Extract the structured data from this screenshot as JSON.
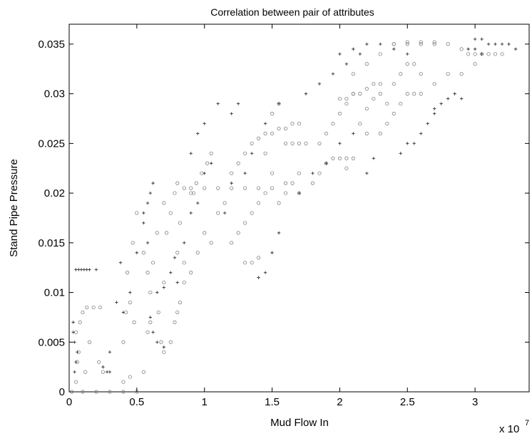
{
  "chart_data": {
    "type": "scatter",
    "title": "Correlation between pair of attributes",
    "xlabel": "Mud Flow In",
    "ylabel": "Stand Pipe Pressure",
    "x_multiplier_label": "x 10",
    "x_multiplier_exponent": "7",
    "xlim": [
      0,
      3.4
    ],
    "ylim": [
      0,
      0.037
    ],
    "x_ticks": [
      0,
      0.5,
      1,
      1.5,
      2,
      2.5,
      3
    ],
    "x_tick_labels": [
      "0",
      "0.5",
      "1",
      "1.5",
      "2",
      "2.5",
      "3"
    ],
    "y_ticks": [
      0,
      0.005,
      0.01,
      0.015,
      0.02,
      0.025,
      0.03,
      0.035
    ],
    "y_tick_labels": [
      "0",
      "0.005",
      "0.01",
      "0.015",
      "0.02",
      "0.025",
      "0.03",
      "0.035"
    ],
    "grid": false,
    "legend": "none",
    "series": [
      {
        "marker": "circle",
        "color": "#808080",
        "points": [
          [
            0.02,
            0.0
          ],
          [
            0.1,
            0.0
          ],
          [
            0.2,
            0.0
          ],
          [
            0.3,
            0.0
          ],
          [
            0.4,
            0.0
          ],
          [
            0.5,
            0.0
          ],
          [
            0.05,
            0.001
          ],
          [
            0.07,
            0.004
          ],
          [
            0.08,
            0.007
          ],
          [
            0.1,
            0.008
          ],
          [
            0.13,
            0.0085
          ],
          [
            0.18,
            0.0085
          ],
          [
            0.23,
            0.0085
          ],
          [
            0.05,
            0.006
          ],
          [
            0.06,
            0.003
          ],
          [
            0.15,
            0.005
          ],
          [
            0.12,
            0.002
          ],
          [
            0.22,
            0.003
          ],
          [
            0.25,
            0.002
          ],
          [
            0.4,
            0.005
          ],
          [
            0.42,
            0.008
          ],
          [
            0.45,
            0.009
          ],
          [
            0.43,
            0.012
          ],
          [
            0.47,
            0.015
          ],
          [
            0.5,
            0.018
          ],
          [
            0.48,
            0.007
          ],
          [
            0.4,
            0.001
          ],
          [
            0.45,
            0.0015
          ],
          [
            0.55,
            0.002
          ],
          [
            0.58,
            0.006
          ],
          [
            0.6,
            0.01
          ],
          [
            0.62,
            0.013
          ],
          [
            0.65,
            0.016
          ],
          [
            0.55,
            0.014
          ],
          [
            0.58,
            0.012
          ],
          [
            0.6,
            0.007
          ],
          [
            0.66,
            0.008
          ],
          [
            0.7,
            0.011
          ],
          [
            0.72,
            0.016
          ],
          [
            0.7,
            0.019
          ],
          [
            0.75,
            0.018
          ],
          [
            0.78,
            0.02
          ],
          [
            0.8,
            0.021
          ],
          [
            0.82,
            0.017
          ],
          [
            0.8,
            0.014
          ],
          [
            0.85,
            0.013
          ],
          [
            0.75,
            0.005
          ],
          [
            0.78,
            0.007
          ],
          [
            0.8,
            0.008
          ],
          [
            0.82,
            0.009
          ],
          [
            0.7,
            0.004
          ],
          [
            0.68,
            0.005
          ],
          [
            0.85,
            0.011
          ],
          [
            0.9,
            0.012
          ],
          [
            0.95,
            0.014
          ],
          [
            1.0,
            0.016
          ],
          [
            1.05,
            0.015
          ],
          [
            0.9,
            0.02
          ],
          [
            0.92,
            0.02
          ],
          [
            0.94,
            0.021
          ],
          [
            0.98,
            0.022
          ],
          [
            1.02,
            0.023
          ],
          [
            1.05,
            0.024
          ],
          [
            0.85,
            0.0205
          ],
          [
            0.9,
            0.0205
          ],
          [
            1.0,
            0.0205
          ],
          [
            1.1,
            0.0205
          ],
          [
            1.2,
            0.0205
          ],
          [
            1.3,
            0.0205
          ],
          [
            1.4,
            0.0205
          ],
          [
            1.5,
            0.0205
          ],
          [
            1.1,
            0.018
          ],
          [
            1.15,
            0.019
          ],
          [
            1.2,
            0.022
          ],
          [
            1.25,
            0.023
          ],
          [
            1.3,
            0.024
          ],
          [
            1.35,
            0.025
          ],
          [
            1.2,
            0.015
          ],
          [
            1.25,
            0.016
          ],
          [
            1.3,
            0.017
          ],
          [
            1.35,
            0.018
          ],
          [
            1.4,
            0.019
          ],
          [
            1.45,
            0.02
          ],
          [
            1.3,
            0.013
          ],
          [
            1.35,
            0.013
          ],
          [
            1.4,
            0.0135
          ],
          [
            1.4,
            0.0255
          ],
          [
            1.45,
            0.026
          ],
          [
            1.5,
            0.026
          ],
          [
            1.55,
            0.0265
          ],
          [
            1.6,
            0.0265
          ],
          [
            1.65,
            0.027
          ],
          [
            1.7,
            0.027
          ],
          [
            1.6,
            0.025
          ],
          [
            1.65,
            0.025
          ],
          [
            1.7,
            0.025
          ],
          [
            1.75,
            0.025
          ],
          [
            1.5,
            0.028
          ],
          [
            1.55,
            0.029
          ],
          [
            1.45,
            0.024
          ],
          [
            1.5,
            0.022
          ],
          [
            1.6,
            0.021
          ],
          [
            1.7,
            0.022
          ],
          [
            1.55,
            0.019
          ],
          [
            1.6,
            0.02
          ],
          [
            1.65,
            0.021
          ],
          [
            1.7,
            0.02
          ],
          [
            1.8,
            0.021
          ],
          [
            1.85,
            0.022
          ],
          [
            1.9,
            0.023
          ],
          [
            1.95,
            0.0235
          ],
          [
            2.0,
            0.0235
          ],
          [
            2.05,
            0.0235
          ],
          [
            2.1,
            0.0235
          ],
          [
            2.05,
            0.0225
          ],
          [
            1.85,
            0.025
          ],
          [
            1.9,
            0.026
          ],
          [
            1.95,
            0.027
          ],
          [
            2.0,
            0.028
          ],
          [
            2.05,
            0.029
          ],
          [
            2.1,
            0.03
          ],
          [
            2.0,
            0.0295
          ],
          [
            2.05,
            0.0295
          ],
          [
            2.1,
            0.03
          ],
          [
            2.15,
            0.03
          ],
          [
            2.2,
            0.0305
          ],
          [
            2.25,
            0.031
          ],
          [
            2.3,
            0.031
          ],
          [
            2.1,
            0.032
          ],
          [
            2.2,
            0.033
          ],
          [
            2.3,
            0.034
          ],
          [
            2.4,
            0.035
          ],
          [
            2.5,
            0.0352
          ],
          [
            2.6,
            0.0352
          ],
          [
            2.7,
            0.0352
          ],
          [
            2.3,
            0.03
          ],
          [
            2.35,
            0.029
          ],
          [
            2.4,
            0.031
          ],
          [
            2.45,
            0.032
          ],
          [
            2.5,
            0.033
          ],
          [
            2.55,
            0.033
          ],
          [
            2.6,
            0.032
          ],
          [
            2.3,
            0.026
          ],
          [
            2.35,
            0.027
          ],
          [
            2.4,
            0.028
          ],
          [
            2.45,
            0.029
          ],
          [
            2.5,
            0.03
          ],
          [
            2.55,
            0.03
          ],
          [
            2.6,
            0.03
          ],
          [
            2.7,
            0.031
          ],
          [
            2.8,
            0.032
          ],
          [
            2.9,
            0.032
          ],
          [
            3.0,
            0.033
          ],
          [
            2.4,
            0.035
          ],
          [
            2.5,
            0.035
          ],
          [
            2.6,
            0.035
          ],
          [
            2.7,
            0.035
          ],
          [
            2.8,
            0.035
          ],
          [
            2.9,
            0.0345
          ],
          [
            2.95,
            0.034
          ],
          [
            3.0,
            0.034
          ],
          [
            3.05,
            0.034
          ],
          [
            3.1,
            0.034
          ],
          [
            3.15,
            0.034
          ],
          [
            3.2,
            0.034
          ],
          [
            2.2,
            0.0285
          ],
          [
            2.25,
            0.0295
          ],
          [
            2.15,
            0.027
          ],
          [
            2.2,
            0.026
          ]
        ]
      },
      {
        "marker": "plus",
        "color": "#333333",
        "points": [
          [
            0.05,
            0.0123
          ],
          [
            0.07,
            0.0123
          ],
          [
            0.09,
            0.0123
          ],
          [
            0.11,
            0.0123
          ],
          [
            0.13,
            0.0123
          ],
          [
            0.15,
            0.0123
          ],
          [
            0.2,
            0.0123
          ],
          [
            0.03,
            0.007
          ],
          [
            0.04,
            0.005
          ],
          [
            0.05,
            0.003
          ],
          [
            0.04,
            0.002
          ],
          [
            0.06,
            0.004
          ],
          [
            0.03,
            0.006
          ],
          [
            0.3,
            0.004
          ],
          [
            0.28,
            0.002
          ],
          [
            0.3,
            0.002
          ],
          [
            0.25,
            0.0025
          ],
          [
            0.35,
            0.009
          ],
          [
            0.38,
            0.013
          ],
          [
            0.4,
            0.008
          ],
          [
            0.45,
            0.01
          ],
          [
            0.5,
            0.014
          ],
          [
            0.55,
            0.017
          ],
          [
            0.55,
            0.018
          ],
          [
            0.58,
            0.019
          ],
          [
            0.6,
            0.02
          ],
          [
            0.62,
            0.021
          ],
          [
            0.58,
            0.015
          ],
          [
            0.6,
            0.0075
          ],
          [
            0.62,
            0.006
          ],
          [
            0.65,
            0.005
          ],
          [
            0.7,
            0.0045
          ],
          [
            0.65,
            0.01
          ],
          [
            0.7,
            0.0105
          ],
          [
            0.75,
            0.012
          ],
          [
            0.78,
            0.0135
          ],
          [
            0.8,
            0.011
          ],
          [
            0.85,
            0.015
          ],
          [
            0.9,
            0.018
          ],
          [
            0.95,
            0.019
          ],
          [
            1.0,
            0.022
          ],
          [
            1.05,
            0.023
          ],
          [
            0.9,
            0.024
          ],
          [
            0.95,
            0.026
          ],
          [
            1.0,
            0.027
          ],
          [
            1.1,
            0.029
          ],
          [
            1.2,
            0.028
          ],
          [
            1.25,
            0.029
          ],
          [
            1.15,
            0.018
          ],
          [
            1.2,
            0.021
          ],
          [
            1.3,
            0.022
          ],
          [
            1.35,
            0.024
          ],
          [
            1.45,
            0.027
          ],
          [
            1.55,
            0.029
          ],
          [
            1.4,
            0.0115
          ],
          [
            1.45,
            0.012
          ],
          [
            1.5,
            0.014
          ],
          [
            1.55,
            0.016
          ],
          [
            1.7,
            0.02
          ],
          [
            1.8,
            0.022
          ],
          [
            1.9,
            0.023
          ],
          [
            2.0,
            0.025
          ],
          [
            2.1,
            0.026
          ],
          [
            1.75,
            0.03
          ],
          [
            1.85,
            0.031
          ],
          [
            1.95,
            0.032
          ],
          [
            2.05,
            0.033
          ],
          [
            2.15,
            0.034
          ],
          [
            2.2,
            0.035
          ],
          [
            2.0,
            0.034
          ],
          [
            2.1,
            0.0345
          ],
          [
            2.3,
            0.035
          ],
          [
            2.4,
            0.0345
          ],
          [
            2.5,
            0.034
          ],
          [
            2.55,
            0.025
          ],
          [
            2.6,
            0.026
          ],
          [
            2.65,
            0.027
          ],
          [
            2.7,
            0.028
          ],
          [
            2.7,
            0.0285
          ],
          [
            2.75,
            0.029
          ],
          [
            2.8,
            0.0295
          ],
          [
            2.85,
            0.03
          ],
          [
            2.9,
            0.0295
          ],
          [
            3.0,
            0.0355
          ],
          [
            3.05,
            0.0355
          ],
          [
            3.1,
            0.035
          ],
          [
            3.15,
            0.035
          ],
          [
            3.2,
            0.035
          ],
          [
            3.25,
            0.035
          ],
          [
            3.3,
            0.0345
          ],
          [
            2.95,
            0.0345
          ],
          [
            3.0,
            0.0345
          ],
          [
            3.05,
            0.034
          ],
          [
            2.45,
            0.024
          ],
          [
            2.5,
            0.025
          ],
          [
            2.25,
            0.0235
          ],
          [
            2.2,
            0.022
          ]
        ]
      }
    ]
  }
}
